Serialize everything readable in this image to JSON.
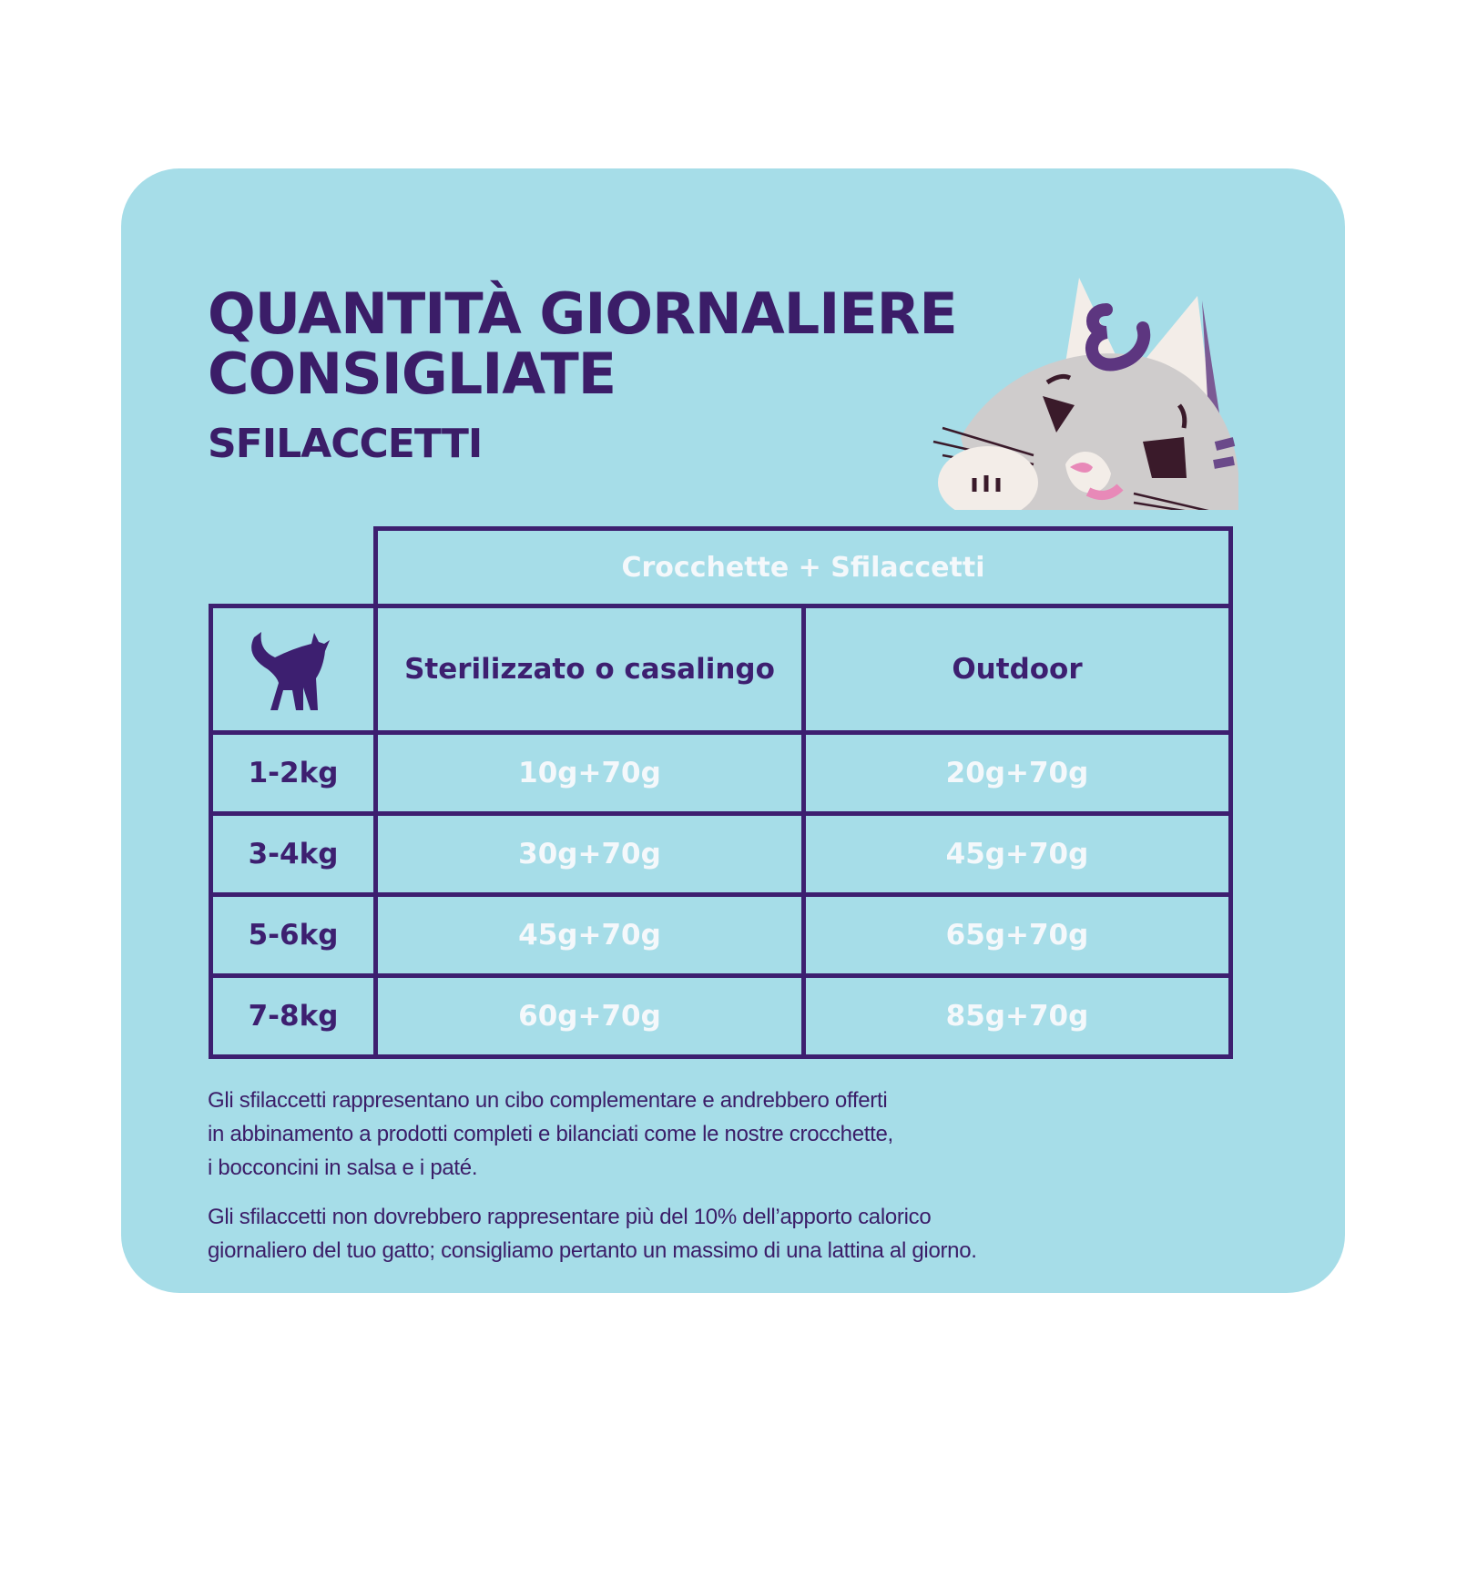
{
  "title": {
    "line1": "QUANTITÀ GIORNALIERE",
    "line2": "CONSIGLIATE"
  },
  "subtitle": "SFILACCETTI",
  "table": {
    "group_header": "Crocchette + Sfilaccetti",
    "weight_icon": "cat-silhouette-icon",
    "columns": [
      "Sterilizzato o casalingo",
      "Outdoor"
    ],
    "rows": [
      {
        "weight": "1-2kg",
        "values": [
          "10g+70g",
          "20g+70g"
        ]
      },
      {
        "weight": "3-4kg",
        "values": [
          "30g+70g",
          "45g+70g"
        ]
      },
      {
        "weight": "5-6kg",
        "values": [
          "45g+70g",
          "65g+70g"
        ]
      },
      {
        "weight": "7-8kg",
        "values": [
          "60g+70g",
          "85g+70g"
        ]
      }
    ]
  },
  "notes": {
    "p1": [
      "Gli sfilaccetti rappresentano un cibo complementare e andrebbero offerti",
      "in abbinamento a prodotti completi e bilanciati come le nostre crocchette,",
      "i bocconcini in salsa e i paté."
    ],
    "p2": [
      "Gli sfilaccetti non dovrebbero rappresentare più del 10% dell’apporto calorico",
      "giornaliero del tuo gatto; consigliamo pertanto un massimo di una lattina al giorno."
    ]
  },
  "colors": {
    "background": "#a6dde8",
    "accent": "#3d1f70",
    "cell_text": "#f4f8fb"
  }
}
